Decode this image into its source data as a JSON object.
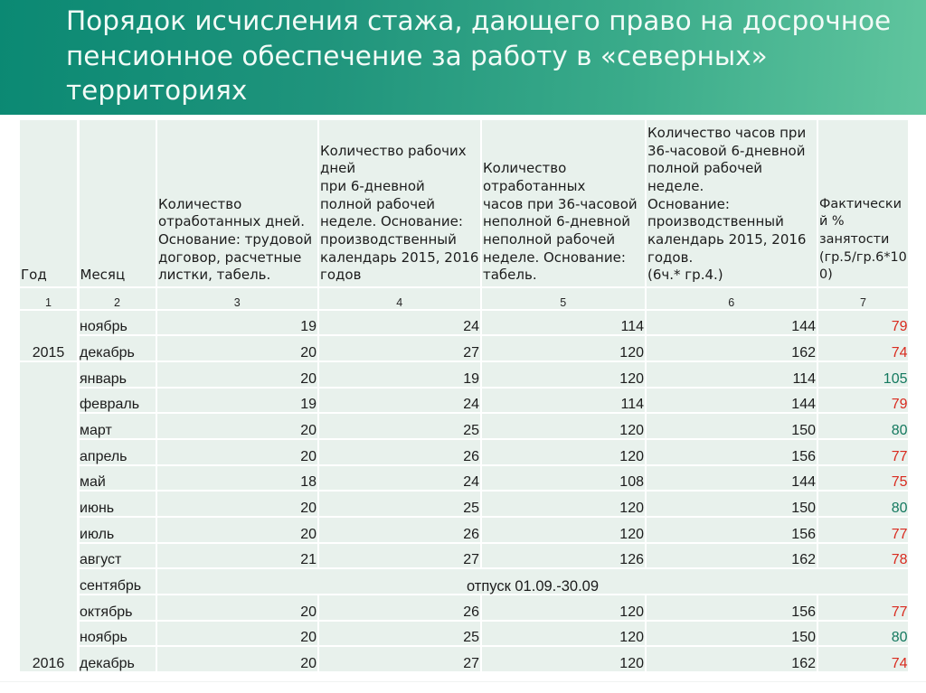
{
  "slide": {
    "title": "Порядок исчисления стажа, дающего право на досрочное\nпенсионное обеспечение за работу в «северных»\nтерриториях"
  },
  "colors": {
    "band_gradient_start": "#0b8973",
    "band_gradient_end": "#60c59e",
    "title_text": "#f2fbf7",
    "cell_background": "#e8f1ec",
    "cell_text": "#1c1c1c",
    "percent_low": "#d92b1f",
    "percent_high": "#14795f"
  },
  "table": {
    "headers": [
      "Год",
      "Месяц",
      "Количество\nотработанных дней.\nОснование: трудовой\nдоговор, расчетные\nлистки, табель.",
      "Количество рабочих\nдней\nпри 6-дневной\nполной рабочей\nнеделе. Основание:\nпроизводственный\nкалендарь 2015, 2016\nгодов",
      "Количество\nотработанных\nчасов при 36-часовой\nнеполной 6-дневной\nнеполной рабочей\nнеделе. Основание:\nтабель.",
      "Количество часов при\n36-часовой 6-дневной\nполной рабочей\nнеделе.\nОснование:\nпроизводственный\nкалендарь 2015, 2016\nгодов.\n(6ч.* гр.4.)",
      "Фактически\nй %\nзанятости\n(гр.5/гр.6*10\n0)"
    ],
    "column_numbers": [
      "1",
      "2",
      "3",
      "4",
      "5",
      "6",
      "7"
    ],
    "years": [
      {
        "label": "2015",
        "row_span": 2
      },
      {
        "label": "2016",
        "row_span": 12
      }
    ],
    "rows": [
      {
        "month": "ноябрь",
        "days_worked": "19",
        "work_days": "24",
        "hours_worked": "114",
        "hours_norm": "144",
        "percent": "79",
        "percent_status": "low"
      },
      {
        "month": "декабрь",
        "days_worked": "20",
        "work_days": "27",
        "hours_worked": "120",
        "hours_norm": "162",
        "percent": "74",
        "percent_status": "low"
      },
      {
        "month": "январь",
        "days_worked": "20",
        "work_days": "19",
        "hours_worked": "120",
        "hours_norm": "114",
        "percent": "105",
        "percent_status": "high"
      },
      {
        "month": "февраль",
        "days_worked": "19",
        "work_days": "24",
        "hours_worked": "114",
        "hours_norm": "144",
        "percent": "79",
        "percent_status": "low"
      },
      {
        "month": "март",
        "days_worked": "20",
        "work_days": "25",
        "hours_worked": "120",
        "hours_norm": "150",
        "percent": "80",
        "percent_status": "high"
      },
      {
        "month": "апрель",
        "days_worked": "20",
        "work_days": "26",
        "hours_worked": "120",
        "hours_norm": "156",
        "percent": "77",
        "percent_status": "low"
      },
      {
        "month": "май",
        "days_worked": "18",
        "work_days": "24",
        "hours_worked": "108",
        "hours_norm": "144",
        "percent": "75",
        "percent_status": "low"
      },
      {
        "month": "июнь",
        "days_worked": "20",
        "work_days": "25",
        "hours_worked": "120",
        "hours_norm": "150",
        "percent": "80",
        "percent_status": "high"
      },
      {
        "month": "июль",
        "days_worked": "20",
        "work_days": "26",
        "hours_worked": "120",
        "hours_norm": "156",
        "percent": "77",
        "percent_status": "low"
      },
      {
        "month": "август",
        "days_worked": "21",
        "work_days": "27",
        "hours_worked": "126",
        "hours_norm": "162",
        "percent": "78",
        "percent_status": "low"
      },
      {
        "month": "сентябрь",
        "vacation": "отпуск 01.09.-30.09"
      },
      {
        "month": "октябрь",
        "days_worked": "20",
        "work_days": "26",
        "hours_worked": "120",
        "hours_norm": "156",
        "percent": "77",
        "percent_status": "low"
      },
      {
        "month": "ноябрь",
        "days_worked": "20",
        "work_days": "25",
        "hours_worked": "120",
        "hours_norm": "150",
        "percent": "80",
        "percent_status": "high"
      },
      {
        "month": "декабрь",
        "days_worked": "20",
        "work_days": "27",
        "hours_worked": "120",
        "hours_norm": "162",
        "percent": "74",
        "percent_status": "low"
      }
    ]
  }
}
